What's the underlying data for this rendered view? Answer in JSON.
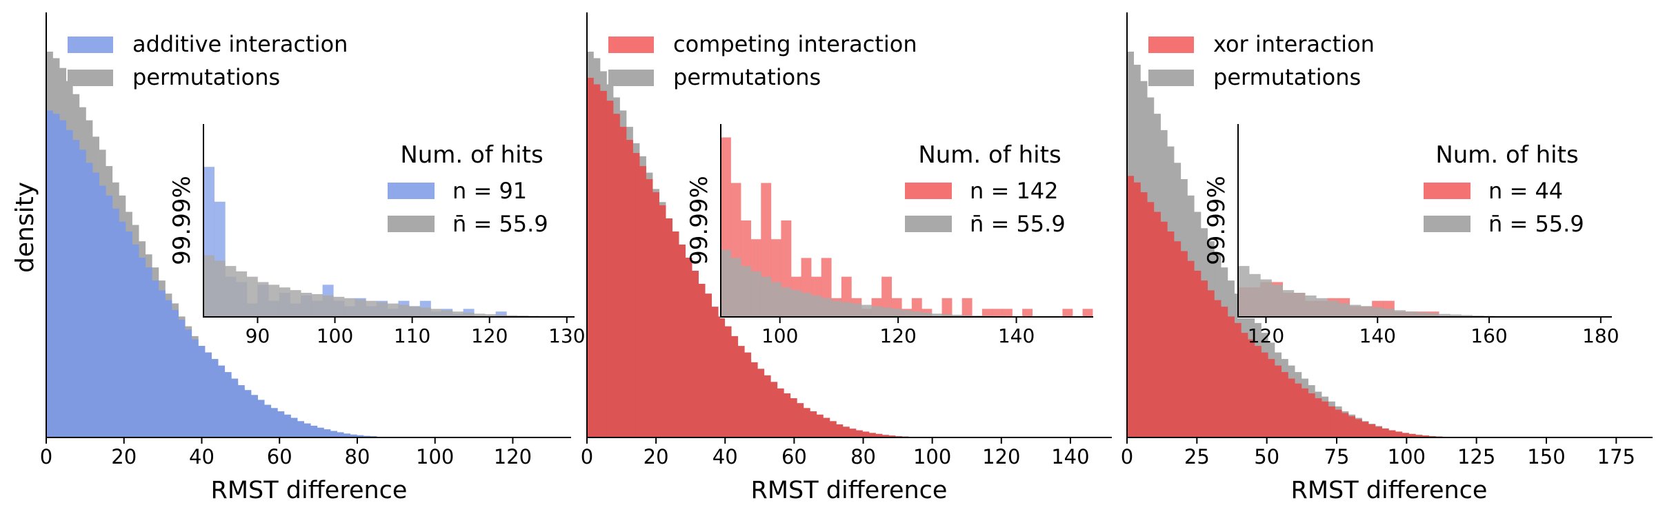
{
  "figure": {
    "ylabel": "density"
  },
  "colors": {
    "permutations": "#a9a9a9",
    "additive": "#8ea8ea",
    "competing": "#f47272",
    "xor": "#f47272"
  },
  "chart_data": [
    {
      "type": "histogram",
      "xlabel": "RMST difference",
      "ylabel": "density",
      "xlim": [
        0,
        135
      ],
      "xticks": [
        0,
        20,
        40,
        60,
        80,
        100,
        120
      ],
      "legend": {
        "placement": "top-left",
        "entries": [
          "additive interaction",
          "permutations"
        ]
      },
      "series": [
        {
          "name": "additive interaction",
          "color": "#7f9ae0",
          "bin_width": 1.7,
          "values": [
            1.0,
            0.99,
            0.97,
            0.94,
            0.91,
            0.88,
            0.84,
            0.81,
            0.77,
            0.74,
            0.7,
            0.66,
            0.63,
            0.59,
            0.55,
            0.52,
            0.48,
            0.45,
            0.42,
            0.39,
            0.36,
            0.33,
            0.3,
            0.28,
            0.26,
            0.24,
            0.22,
            0.2,
            0.18,
            0.16,
            0.145,
            0.13,
            0.115,
            0.1,
            0.09,
            0.08,
            0.07,
            0.06,
            0.05,
            0.043,
            0.036,
            0.03,
            0.025,
            0.02,
            0.016,
            0.012,
            0.009,
            0.007,
            0.005,
            0.004
          ]
        },
        {
          "name": "permutations",
          "color": "#a9a9a9",
          "bin_width": 1.7,
          "values": [
            1.18,
            1.16,
            1.13,
            1.09,
            1.05,
            1.01,
            0.97,
            0.92,
            0.88,
            0.83,
            0.78,
            0.74,
            0.69,
            0.65,
            0.6,
            0.56,
            0.52,
            0.48,
            0.44,
            0.41,
            0.37,
            0.34,
            0.31,
            0.28,
            0.26,
            0.23,
            0.21,
            0.19,
            0.17,
            0.15,
            0.13,
            0.12,
            0.1,
            0.09,
            0.08,
            0.07,
            0.06,
            0.05,
            0.042,
            0.035,
            0.028,
            0.022,
            0.018,
            0.014,
            0.011,
            0.008,
            0.006,
            0.004,
            0.003,
            0.002
          ]
        }
      ],
      "inset": {
        "title": "Num. of hits",
        "xticks": [
          90,
          100,
          110,
          120,
          130
        ],
        "xlim": [
          83,
          131
        ],
        "ylabel": "99.99%",
        "legend": [
          {
            "label": "n = 91",
            "series": "additive"
          },
          {
            "label": "n̄ = 55.9",
            "series": "permutations"
          }
        ],
        "bin_width": 1.4,
        "series": [
          {
            "name": "additive",
            "color": "#8ea8ea",
            "opacity": 0.85,
            "values": [
              0.56,
              0.43,
              0.15,
              0.13,
              0.05,
              0.12,
              0.06,
              0.09,
              0.05,
              0.08,
              0.06,
              0.12,
              0.06,
              0.04,
              0.07,
              0.04,
              0.06,
              0.03,
              0.06,
              0.04,
              0.06,
              0.02,
              0.03,
              0.01,
              0.03,
              0,
              0,
              0.02,
              0,
              0,
              0,
              0,
              0,
              0,
              0,
              0.02,
              0,
              0,
              0,
              0,
              0.02
            ]
          },
          {
            "name": "permutations",
            "color": "#a9a9a9",
            "opacity": 0.85,
            "values": [
              0.23,
              0.21,
              0.19,
              0.17,
              0.15,
              0.13,
              0.12,
              0.11,
              0.1,
              0.09,
              0.085,
              0.08,
              0.075,
              0.07,
              0.065,
              0.06,
              0.055,
              0.05,
              0.045,
              0.04,
              0.035,
              0.03,
              0.025,
              0.02,
              0.016,
              0.012,
              0.01,
              0.008,
              0.006,
              0.005,
              0.004,
              0.003,
              0.002,
              0.002,
              0.001,
              0.001,
              0.001,
              0,
              0,
              0,
              0
            ]
          }
        ]
      }
    },
    {
      "type": "histogram",
      "xlabel": "RMST difference",
      "ylabel": "",
      "xlim": [
        0,
        152
      ],
      "xticks": [
        0,
        20,
        40,
        60,
        80,
        100,
        120,
        140
      ],
      "legend": {
        "placement": "top-left",
        "entries": [
          "competing interaction",
          "permutations"
        ]
      },
      "series": [
        {
          "name": "competing interaction",
          "color": "#dc5454",
          "bin_width": 1.9,
          "values": [
            1.1,
            1.08,
            1.06,
            1.03,
            0.99,
            0.95,
            0.91,
            0.87,
            0.83,
            0.79,
            0.75,
            0.71,
            0.67,
            0.63,
            0.59,
            0.55,
            0.51,
            0.47,
            0.44,
            0.4,
            0.37,
            0.34,
            0.31,
            0.28,
            0.26,
            0.23,
            0.21,
            0.19,
            0.17,
            0.15,
            0.135,
            0.12,
            0.105,
            0.09,
            0.08,
            0.07,
            0.06,
            0.05,
            0.04,
            0.033,
            0.027,
            0.022,
            0.018,
            0.014,
            0.011,
            0.008,
            0.006,
            0.004,
            0.003,
            0.002
          ]
        },
        {
          "name": "permutations",
          "color": "#a9a9a9",
          "bin_width": 1.9,
          "values": [
            1.18,
            1.16,
            1.12,
            1.08,
            1.04,
            1.0,
            0.95,
            0.9,
            0.86,
            0.81,
            0.76,
            0.72,
            0.67,
            0.63,
            0.58,
            0.54,
            0.5,
            0.46,
            0.42,
            0.38,
            0.35,
            0.32,
            0.29,
            0.26,
            0.24,
            0.21,
            0.19,
            0.17,
            0.15,
            0.13,
            0.12,
            0.1,
            0.09,
            0.08,
            0.07,
            0.06,
            0.05,
            0.04,
            0.033,
            0.027,
            0.021,
            0.017,
            0.013,
            0.01,
            0.008,
            0.006,
            0.004,
            0.003,
            0.002,
            0.001
          ]
        }
      ],
      "inset": {
        "title": "Num. of hits",
        "xticks": [
          100,
          120,
          140
        ],
        "xlim": [
          90,
          153
        ],
        "ylabel": "99.99%",
        "legend": [
          {
            "label": "n = 142",
            "series": "competing"
          },
          {
            "label": "n̄ = 55.9",
            "series": "permutations"
          }
        ],
        "bin_width": 1.7,
        "series": [
          {
            "name": "competing",
            "color": "#f47272",
            "opacity": 0.85,
            "values": [
              0.67,
              0.5,
              0.36,
              0.29,
              0.5,
              0.29,
              0.36,
              0.15,
              0.22,
              0.15,
              0.22,
              0.07,
              0.15,
              0.07,
              0.03,
              0.07,
              0.15,
              0.07,
              0.03,
              0.07,
              0.03,
              0,
              0.07,
              0,
              0.07,
              0,
              0.03,
              0.03,
              0.03,
              0,
              0.03,
              0,
              0,
              0,
              0.03,
              0,
              0.03,
              0,
              0.03,
              0,
              0.03
            ]
          },
          {
            "name": "permutations",
            "color": "#a9a9a9",
            "opacity": 0.85,
            "values": [
              0.25,
              0.22,
              0.19,
              0.17,
              0.15,
              0.13,
              0.11,
              0.1,
              0.09,
              0.08,
              0.07,
              0.06,
              0.055,
              0.05,
              0.045,
              0.04,
              0.035,
              0.03,
              0.025,
              0.02,
              0.016,
              0.012,
              0.01,
              0.008,
              0.006,
              0.005,
              0.004,
              0.003,
              0.002,
              0.002,
              0.001,
              0.001,
              0,
              0,
              0,
              0,
              0,
              0,
              0,
              0,
              0
            ]
          }
        ]
      }
    },
    {
      "type": "histogram",
      "xlabel": "RMST difference",
      "ylabel": "",
      "xlim": [
        0,
        188
      ],
      "xticks": [
        0,
        25,
        50,
        75,
        100,
        125,
        150,
        175
      ],
      "legend": {
        "placement": "top-left",
        "entries": [
          "xor interaction",
          "permutations"
        ]
      },
      "series": [
        {
          "name": "xor interaction",
          "color": "#dc5454",
          "bin_width": 2.4,
          "values": [
            0.8,
            0.78,
            0.75,
            0.72,
            0.69,
            0.66,
            0.63,
            0.6,
            0.57,
            0.54,
            0.51,
            0.48,
            0.45,
            0.42,
            0.4,
            0.37,
            0.35,
            0.32,
            0.3,
            0.28,
            0.26,
            0.24,
            0.22,
            0.2,
            0.18,
            0.165,
            0.15,
            0.135,
            0.12,
            0.11,
            0.095,
            0.085,
            0.075,
            0.065,
            0.056,
            0.048,
            0.04,
            0.033,
            0.027,
            0.022,
            0.018,
            0.014,
            0.011,
            0.008,
            0.006,
            0.004,
            0.003,
            0.002,
            0.001,
            0.001
          ]
        },
        {
          "name": "permutations",
          "color": "#a9a9a9",
          "bin_width": 2.4,
          "values": [
            1.18,
            1.14,
            1.09,
            1.04,
            0.99,
            0.94,
            0.89,
            0.84,
            0.79,
            0.74,
            0.69,
            0.64,
            0.6,
            0.56,
            0.52,
            0.48,
            0.44,
            0.41,
            0.38,
            0.35,
            0.32,
            0.29,
            0.26,
            0.24,
            0.22,
            0.2,
            0.18,
            0.16,
            0.14,
            0.125,
            0.11,
            0.095,
            0.08,
            0.07,
            0.06,
            0.05,
            0.042,
            0.035,
            0.028,
            0.022,
            0.017,
            0.013,
            0.01,
            0.008,
            0.006,
            0.004,
            0.003,
            0.002,
            0.001,
            0.001
          ]
        }
      ],
      "inset": {
        "title": "Num. of hits",
        "xticks": [
          120,
          140,
          160,
          180
        ],
        "xlim": [
          115,
          182
        ],
        "ylabel": "99.99%",
        "legend": [
          {
            "label": "n = 44",
            "series": "xor"
          },
          {
            "label": "n̄ = 55.9",
            "series": "permutations"
          }
        ],
        "bin_width": 2.0,
        "series": [
          {
            "name": "xor",
            "color": "#f47272",
            "opacity": 0.85,
            "values": [
              0.11,
              0.11,
              0.13,
              0.13,
              0.09,
              0.09,
              0.06,
              0.06,
              0.07,
              0.07,
              0.04,
              0.04,
              0.06,
              0.06,
              0.02,
              0.02,
              0.02,
              0.02,
              0,
              0,
              0,
              0,
              0,
              0,
              0,
              0,
              0,
              0,
              0,
              0,
              0,
              0,
              0
            ]
          },
          {
            "name": "permutations",
            "color": "#a9a9a9",
            "opacity": 0.85,
            "values": [
              0.19,
              0.16,
              0.14,
              0.12,
              0.1,
              0.09,
              0.08,
              0.07,
              0.06,
              0.05,
              0.045,
              0.04,
              0.035,
              0.03,
              0.025,
              0.02,
              0.017,
              0.014,
              0.011,
              0.009,
              0.007,
              0.005,
              0.004,
              0.003,
              0.002,
              0.002,
              0.001,
              0.001,
              0,
              0,
              0,
              0,
              0
            ]
          }
        ]
      }
    }
  ]
}
